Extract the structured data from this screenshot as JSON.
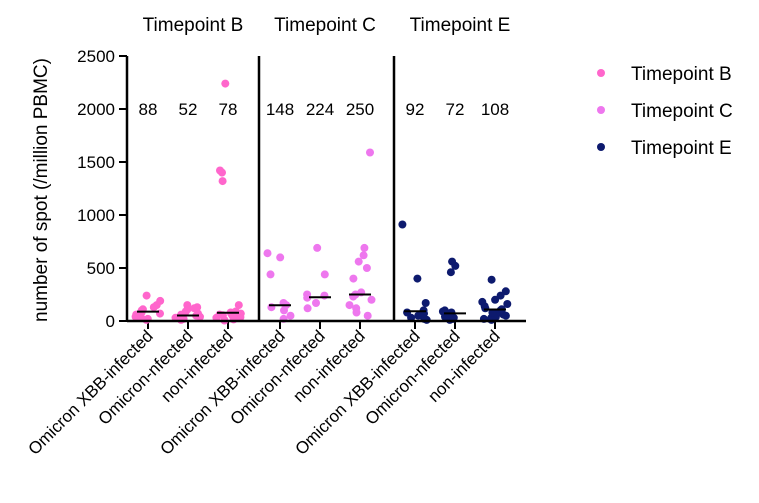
{
  "chart_data": {
    "type": "scatter",
    "ylabel": "number of spot (/million PBMC)",
    "ylim": [
      0,
      2500
    ],
    "yticks": [
      0,
      500,
      1000,
      1500,
      2000,
      2500
    ],
    "categories": [
      "Omicron XBB-infected",
      "Omicron-nfected",
      "non-infected"
    ],
    "panels": [
      {
        "title": "Timepoint B",
        "color": "#ff66cc",
        "medians": [
          88,
          52,
          78
        ],
        "median_labels": [
          "88",
          "52",
          "78"
        ],
        "points": [
          [
            10,
            20,
            30,
            40,
            50,
            60,
            70,
            80,
            100,
            110,
            130,
            150,
            190,
            240
          ],
          [
            10,
            20,
            30,
            40,
            50,
            60,
            70,
            90,
            110,
            120,
            130,
            150
          ],
          [
            5,
            10,
            15,
            20,
            25,
            30,
            35,
            40,
            45,
            50,
            55,
            60,
            65,
            70,
            80,
            90,
            150,
            1320,
            1400,
            1420,
            2240
          ]
        ]
      },
      {
        "title": "Timepoint C",
        "color": "#ee77ee",
        "medians": [
          148,
          224,
          250
        ],
        "median_labels": [
          "148",
          "224",
          "250"
        ],
        "points": [
          [
            20,
            50,
            100,
            130,
            150,
            170,
            440,
            600,
            640
          ],
          [
            120,
            170,
            220,
            240,
            250,
            440,
            690
          ],
          [
            50,
            80,
            120,
            150,
            200,
            230,
            250,
            270,
            400,
            500,
            560,
            620,
            690,
            1590
          ]
        ]
      },
      {
        "title": "Timepoint E",
        "color": "#0d1a6e",
        "medians": [
          92,
          72,
          108
        ],
        "median_labels": [
          "92",
          "72",
          "108"
        ],
        "points": [
          [
            10,
            20,
            30,
            50,
            70,
            80,
            100,
            170,
            400,
            910
          ],
          [
            10,
            20,
            30,
            40,
            60,
            70,
            80,
            90,
            100,
            460,
            520,
            560
          ],
          [
            10,
            20,
            30,
            40,
            50,
            60,
            70,
            80,
            90,
            100,
            110,
            120,
            140,
            160,
            180,
            200,
            240,
            280,
            390
          ]
        ]
      }
    ],
    "legend": {
      "position": "right",
      "entries": [
        {
          "label": "Timepoint B",
          "color": "#ff66cc"
        },
        {
          "label": "Timepoint C",
          "color": "#ee77ee"
        },
        {
          "label": "Timepoint E",
          "color": "#0d1a6e"
        }
      ]
    }
  }
}
